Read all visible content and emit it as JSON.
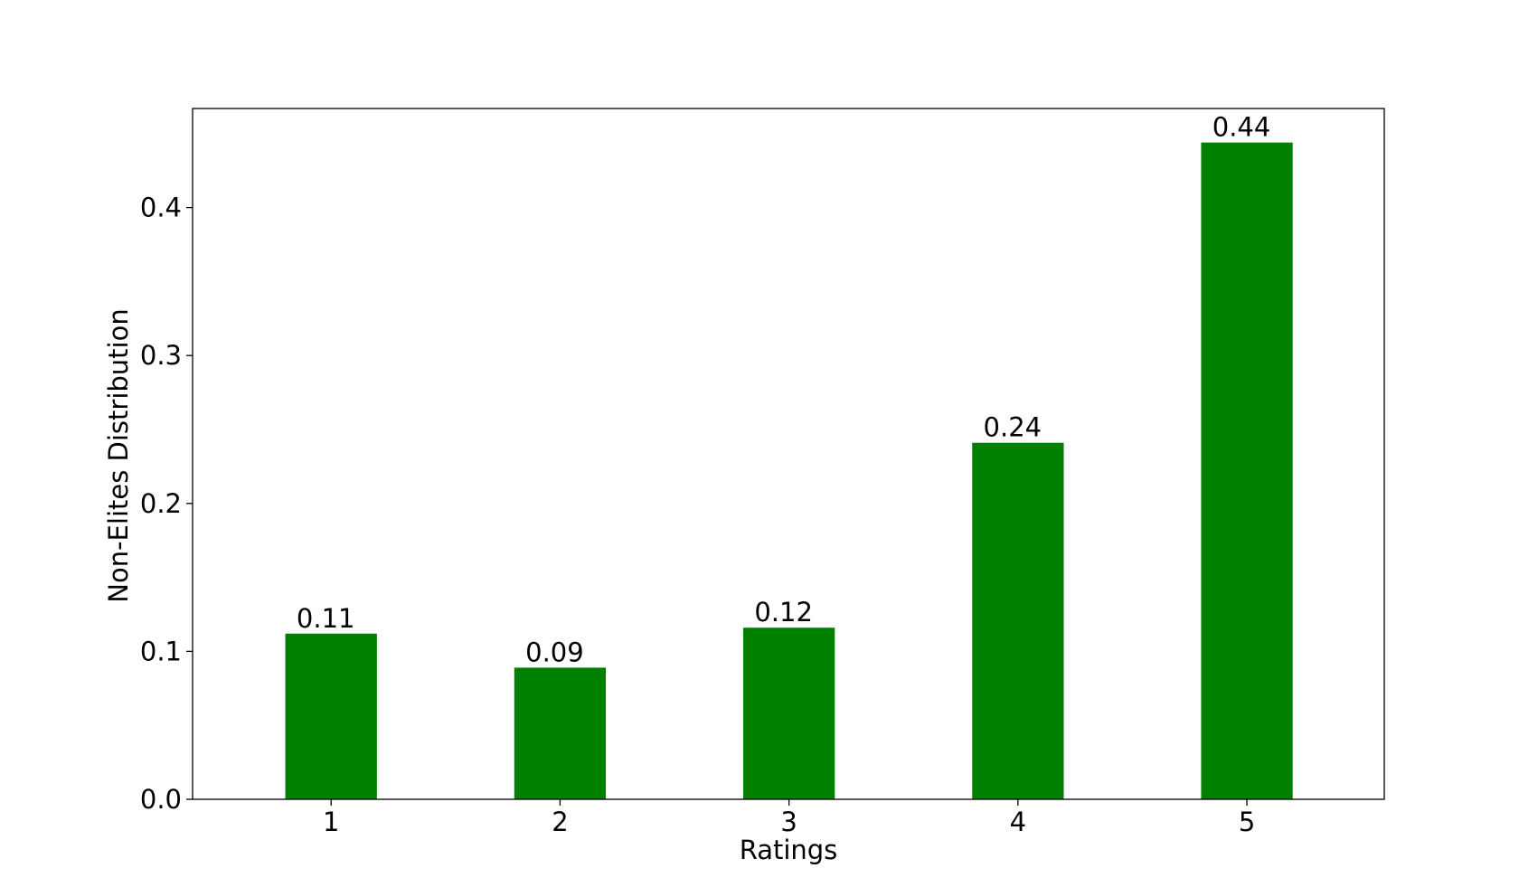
{
  "chart_data": {
    "type": "bar",
    "title": "",
    "xlabel": "Ratings",
    "ylabel": "Non-Elites Distribution",
    "categories": [
      "1",
      "2",
      "3",
      "4",
      "5"
    ],
    "values": [
      0.112,
      0.089,
      0.116,
      0.241,
      0.444
    ],
    "data_labels": [
      "0.11",
      "0.09",
      "0.12",
      "0.24",
      "0.44"
    ],
    "ylim": [
      0,
      0.467
    ],
    "yticks": [
      0.0,
      0.1,
      0.2,
      0.3,
      0.4
    ],
    "ytick_labels": [
      "0.0",
      "0.1",
      "0.2",
      "0.3",
      "0.4"
    ],
    "bar_color": "#008000",
    "grid": false,
    "legend": "none"
  }
}
